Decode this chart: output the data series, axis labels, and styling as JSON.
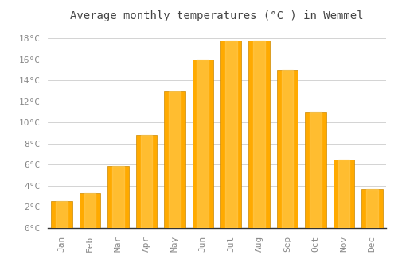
{
  "title": "Average monthly temperatures (°C ) in Wemmel",
  "months": [
    "Jan",
    "Feb",
    "Mar",
    "Apr",
    "May",
    "Jun",
    "Jul",
    "Aug",
    "Sep",
    "Oct",
    "Nov",
    "Dec"
  ],
  "temperatures": [
    2.6,
    3.3,
    5.9,
    8.8,
    13.0,
    16.0,
    17.8,
    17.8,
    15.0,
    11.0,
    6.5,
    3.7
  ],
  "bar_color": "#FFAA00",
  "bar_edge_color": "#CC8800",
  "ylim": [
    0,
    19
  ],
  "yticks": [
    0,
    2,
    4,
    6,
    8,
    10,
    12,
    14,
    16,
    18
  ],
  "background_color": "#FFFFFF",
  "grid_color": "#CCCCCC",
  "title_fontsize": 10,
  "tick_fontsize": 8,
  "tick_color": "#888888",
  "title_color": "#444444"
}
